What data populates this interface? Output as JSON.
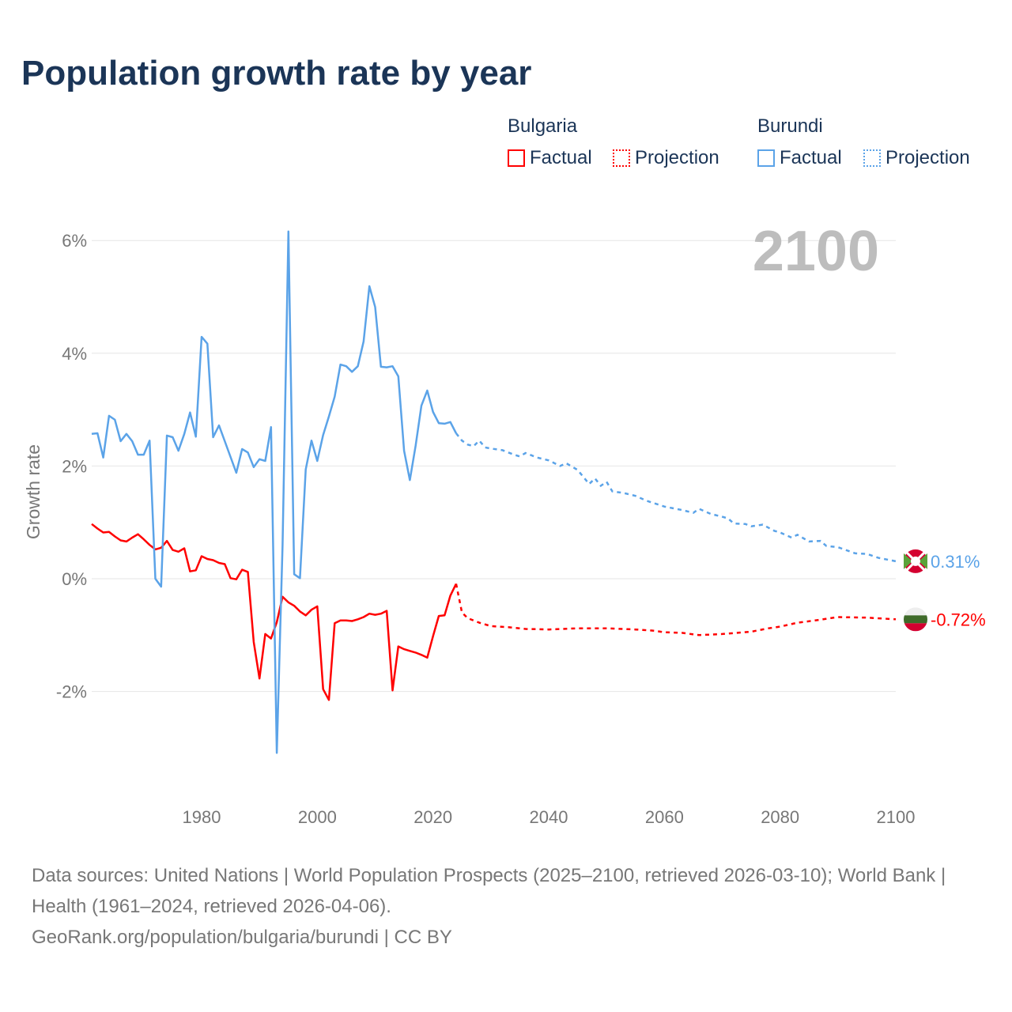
{
  "chart_data": {
    "type": "line",
    "title": "Population growth rate by year",
    "ylabel": "Growth rate",
    "xlabel": "",
    "year_label": "2100",
    "xlim": [
      1961,
      2100
    ],
    "ylim": [
      -3.6,
      6.3
    ],
    "x_ticks": [
      1980,
      2000,
      2020,
      2040,
      2060,
      2080,
      2100
    ],
    "y_ticks": [
      -2,
      0,
      2,
      4,
      6
    ],
    "y_tick_labels": [
      "-2%",
      "0%",
      "2%",
      "4%",
      "6%"
    ],
    "grid": true,
    "legend": {
      "placement": "top-right",
      "groups": [
        {
          "name": "Bulgaria",
          "items": [
            "Factual",
            "Projection"
          ]
        },
        {
          "name": "Burundi",
          "items": [
            "Factual",
            "Projection"
          ]
        }
      ]
    },
    "series": [
      {
        "name": "Bulgaria",
        "color": "#ff0000",
        "end_label": "-0.72%",
        "factual": {
          "x": [
            1961,
            1962,
            1963,
            1964,
            1965,
            1966,
            1967,
            1968,
            1969,
            1970,
            1971,
            1972,
            1973,
            1974,
            1975,
            1976,
            1977,
            1978,
            1979,
            1980,
            1981,
            1982,
            1983,
            1984,
            1985,
            1986,
            1987,
            1988,
            1989,
            1990,
            1991,
            1992,
            1993,
            1994,
            1995,
            1996,
            1997,
            1998,
            1999,
            2000,
            2001,
            2002,
            2003,
            2004,
            2005,
            2006,
            2007,
            2008,
            2009,
            2010,
            2011,
            2012,
            2013,
            2014,
            2015,
            2016,
            2017,
            2018,
            2019,
            2020,
            2021,
            2022,
            2023,
            2024
          ],
          "y": [
            0.97,
            0.89,
            0.82,
            0.83,
            0.75,
            0.68,
            0.66,
            0.73,
            0.79,
            0.7,
            0.6,
            0.52,
            0.55,
            0.67,
            0.51,
            0.48,
            0.54,
            0.13,
            0.15,
            0.4,
            0.35,
            0.33,
            0.28,
            0.26,
            0.01,
            -0.01,
            0.16,
            0.12,
            -1.12,
            -1.77,
            -0.98,
            -1.06,
            -0.77,
            -0.32,
            -0.42,
            -0.48,
            -0.58,
            -0.65,
            -0.55,
            -0.49,
            -1.96,
            -2.15,
            -0.79,
            -0.74,
            -0.74,
            -0.75,
            -0.72,
            -0.68,
            -0.62,
            -0.64,
            -0.62,
            -0.57,
            -1.98,
            -1.2,
            -1.25,
            -1.28,
            -1.31,
            -1.35,
            -1.4,
            -1.02,
            -0.66,
            -0.65,
            -0.3,
            -0.09
          ]
        },
        "projection": {
          "x": [
            2024,
            2025,
            2026,
            2028,
            2030,
            2033,
            2036,
            2040,
            2045,
            2050,
            2055,
            2058,
            2060,
            2063,
            2066,
            2070,
            2075,
            2078,
            2080,
            2083,
            2086,
            2090,
            2095,
            2100
          ],
          "y": [
            -0.09,
            -0.6,
            -0.7,
            -0.78,
            -0.84,
            -0.86,
            -0.89,
            -0.9,
            -0.88,
            -0.88,
            -0.9,
            -0.92,
            -0.95,
            -0.96,
            -1.0,
            -0.98,
            -0.94,
            -0.88,
            -0.85,
            -0.78,
            -0.74,
            -0.68,
            -0.69,
            -0.72
          ]
        }
      },
      {
        "name": "Burundi",
        "color": "#5ba3e8",
        "end_label": "0.31%",
        "factual": {
          "x": [
            1961,
            1962,
            1963,
            1964,
            1965,
            1966,
            1967,
            1968,
            1969,
            1970,
            1971,
            1972,
            1973,
            1974,
            1975,
            1976,
            1977,
            1978,
            1979,
            1980,
            1981,
            1982,
            1983,
            1984,
            1985,
            1986,
            1987,
            1988,
            1989,
            1990,
            1991,
            1992,
            1993,
            1994,
            1995,
            1996,
            1997,
            1998,
            1999,
            2000,
            2001,
            2002,
            2003,
            2004,
            2005,
            2006,
            2007,
            2008,
            2009,
            2010,
            2011,
            2012,
            2013,
            2014,
            2015,
            2016,
            2017,
            2018,
            2019,
            2020,
            2021,
            2022,
            2023,
            2024
          ],
          "y": [
            2.57,
            2.58,
            2.15,
            2.89,
            2.82,
            2.44,
            2.57,
            2.44,
            2.2,
            2.2,
            2.45,
            0.0,
            -0.14,
            2.54,
            2.51,
            2.27,
            2.57,
            2.95,
            2.52,
            4.29,
            4.17,
            2.51,
            2.72,
            2.44,
            2.16,
            1.88,
            2.3,
            2.24,
            1.98,
            2.12,
            2.09,
            2.69,
            -3.09,
            0.6,
            6.16,
            0.08,
            0.01,
            1.94,
            2.45,
            2.09,
            2.55,
            2.88,
            3.23,
            3.8,
            3.77,
            3.67,
            3.77,
            4.21,
            5.19,
            4.82,
            3.76,
            3.75,
            3.77,
            3.59,
            2.27,
            1.75,
            2.36,
            3.07,
            3.34,
            2.96,
            2.76,
            2.75,
            2.78,
            2.58
          ]
        },
        "projection": {
          "x": [
            2024,
            2025,
            2026,
            2027,
            2028,
            2029,
            2030,
            2032,
            2034,
            2035,
            2036,
            2038,
            2040,
            2042,
            2043,
            2045,
            2047,
            2048,
            2049,
            2050,
            2051,
            2053,
            2055,
            2057,
            2060,
            2063,
            2065,
            2066,
            2068,
            2070,
            2071,
            2072,
            2074,
            2075,
            2077,
            2079,
            2080,
            2082,
            2083,
            2085,
            2087,
            2088,
            2090,
            2093,
            2095,
            2097,
            2100
          ],
          "y": [
            2.58,
            2.45,
            2.38,
            2.35,
            2.45,
            2.33,
            2.31,
            2.28,
            2.2,
            2.17,
            2.23,
            2.15,
            2.1,
            2.0,
            2.05,
            1.93,
            1.68,
            1.78,
            1.65,
            1.72,
            1.55,
            1.52,
            1.47,
            1.38,
            1.28,
            1.22,
            1.17,
            1.24,
            1.15,
            1.1,
            1.07,
            0.98,
            0.97,
            0.93,
            0.96,
            0.85,
            0.82,
            0.73,
            0.78,
            0.66,
            0.67,
            0.58,
            0.56,
            0.45,
            0.44,
            0.37,
            0.31
          ]
        }
      }
    ]
  },
  "footer": {
    "sources": "Data sources: United Nations | World Population Prospects (2025–2100, retrieved 2026-03-10); World Bank | Health (1961–2024, retrieved 2026-04-06).",
    "attribution": "GeoRank.org/population/bulgaria/burundi | CC BY"
  }
}
